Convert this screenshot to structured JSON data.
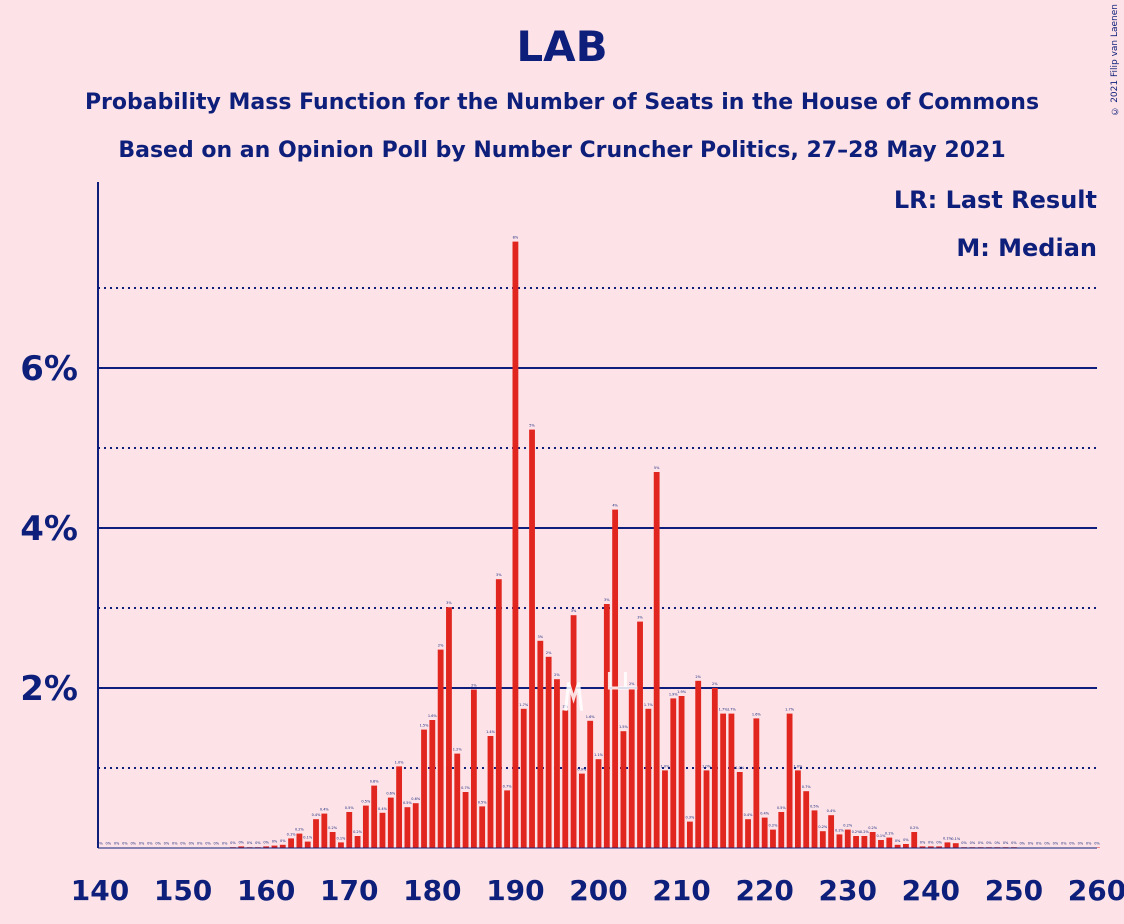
{
  "title": "LAB",
  "subtitle1": "Probability Mass Function for the Number of Seats in the House of Commons",
  "subtitle2": "Based on an Opinion Poll by Number Cruncher Politics, 27–28 May 2021",
  "copyright": "© 2021 Filip van Laenen",
  "colors": {
    "background": "#fde3e7",
    "bar": "#e0261f",
    "text": "#0d1f7a",
    "median": "#ffffff"
  },
  "chart_data": {
    "type": "bar",
    "xlim": [
      140,
      260
    ],
    "ylim": [
      0,
      8.3
    ],
    "x_ticks": [
      "140",
      "150",
      "160",
      "170",
      "180",
      "190",
      "200",
      "210",
      "220",
      "230",
      "240",
      "250",
      "260"
    ],
    "y_ticks": [
      {
        "value": 2,
        "label": "2%"
      },
      {
        "value": 4,
        "label": "4%"
      },
      {
        "value": 6,
        "label": "6%"
      }
    ],
    "minor_gridlines": [
      1,
      3,
      5,
      7
    ],
    "median_seat": 197,
    "last_result_seat": 203,
    "legend": [
      {
        "key": "LR",
        "text": "LR: Last Result"
      },
      {
        "key": "M",
        "text": "M: Median"
      }
    ],
    "x": [
      140,
      141,
      142,
      143,
      144,
      145,
      146,
      147,
      148,
      149,
      150,
      151,
      152,
      153,
      154,
      155,
      156,
      157,
      158,
      159,
      160,
      161,
      162,
      163,
      164,
      165,
      166,
      167,
      168,
      169,
      170,
      171,
      172,
      173,
      174,
      175,
      176,
      177,
      178,
      179,
      180,
      181,
      182,
      183,
      184,
      185,
      186,
      187,
      188,
      189,
      190,
      191,
      192,
      193,
      194,
      195,
      196,
      197,
      198,
      199,
      200,
      201,
      202,
      203,
      204,
      205,
      206,
      207,
      208,
      209,
      210,
      211,
      212,
      213,
      214,
      215,
      216,
      217,
      218,
      219,
      220,
      221,
      222,
      223,
      224,
      225,
      226,
      227,
      228,
      229,
      230,
      231,
      232,
      233,
      234,
      235,
      236,
      237,
      238,
      239,
      240,
      241,
      242,
      243,
      244,
      245,
      246,
      247,
      248,
      249,
      250,
      251,
      252,
      253,
      254,
      255,
      256,
      257,
      258,
      259,
      260
    ],
    "values": [
      0,
      0,
      0,
      0,
      0,
      0,
      0,
      0,
      0,
      0,
      0,
      0,
      0,
      0,
      0,
      0,
      0.01,
      0.02,
      0.01,
      0.01,
      0.02,
      0.03,
      0.04,
      0.12,
      0.18,
      0.08,
      0.36,
      0.43,
      0.2,
      0.07,
      0.45,
      0.15,
      0.53,
      0.78,
      0.44,
      0.63,
      1.02,
      0.51,
      0.56,
      1.48,
      1.6,
      2.48,
      3.01,
      1.18,
      0.7,
      1.98,
      0.52,
      1.4,
      3.36,
      0.72,
      7.58,
      1.74,
      5.23,
      2.59,
      2.39,
      2.11,
      1.72,
      2.91,
      0.93,
      1.59,
      1.11,
      3.05,
      4.23,
      1.46,
      2.0,
      2.83,
      1.74,
      4.7,
      0.97,
      1.87,
      1.9,
      0.33,
      2.09,
      0.97,
      2.0,
      1.68,
      1.68,
      0.95,
      0.36,
      1.62,
      0.38,
      0.23,
      0.45,
      1.68,
      0.97,
      0.71,
      0.47,
      0.21,
      0.41,
      0.17,
      0.23,
      0.15,
      0.15,
      0.2,
      0.1,
      0.13,
      0.04,
      0.05,
      0.2,
      0.02,
      0.02,
      0.02,
      0.07,
      0.06,
      0.01,
      0.01,
      0.01,
      0.01,
      0.01,
      0.01,
      0.01,
      0,
      0,
      0,
      0,
      0,
      0,
      0,
      0,
      0,
      0
    ],
    "bar_labels": [
      "0%",
      "0%",
      "0%",
      "0%",
      "0%",
      "0%",
      "0%",
      "0%",
      "0%",
      "0%",
      "0%",
      "0%",
      "0%",
      "0%",
      "0%",
      "0%",
      "0%",
      "0%",
      "0%",
      "0%",
      "0%",
      "0%",
      "0%",
      "0.1%",
      "0.2%",
      "0.1%",
      "0.4%",
      "0.4%",
      "0.2%",
      "0.1%",
      "0.5%",
      "0.2%",
      "0.5%",
      "0.8%",
      "0.4%",
      "0.6%",
      "1.0%",
      "0.5%",
      "0.6%",
      "1.5%",
      "1.6%",
      "2%",
      "3%",
      "1.2%",
      "0.7%",
      "2%",
      "0.5%",
      "1.4%",
      "3%",
      "0.7%",
      "8%",
      "1.7%",
      "5%",
      "3%",
      "2%",
      "2%",
      "2%",
      "3%",
      "0.9%",
      "1.6%",
      "1.1%",
      "3%",
      "4%",
      "1.5%",
      "2%",
      "3%",
      "1.7%",
      "5%",
      "1.0%",
      "1.9%",
      "1.9%",
      "0.3%",
      "2%",
      "1.0%",
      "2%",
      "1.7%",
      "1.7%",
      "1.0%",
      "0.4%",
      "1.6%",
      "0.4%",
      "0.2%",
      "0.5%",
      "1.7%",
      "1.0%",
      "0.7%",
      "0.5%",
      "0.2%",
      "0.4%",
      "0.2%",
      "0.2%",
      "0.2%",
      "0.2%",
      "0.2%",
      "0.1%",
      "0.1%",
      "0%",
      "0%",
      "0.2%",
      "0%",
      "0%",
      "0%",
      "0.1%",
      "0.1%",
      "0%",
      "0%",
      "0%",
      "0%",
      "0%",
      "0%",
      "0%",
      "0%",
      "0%",
      "0%",
      "0%",
      "0%",
      "0%",
      "0%",
      "0%",
      "0%",
      "0%"
    ]
  }
}
